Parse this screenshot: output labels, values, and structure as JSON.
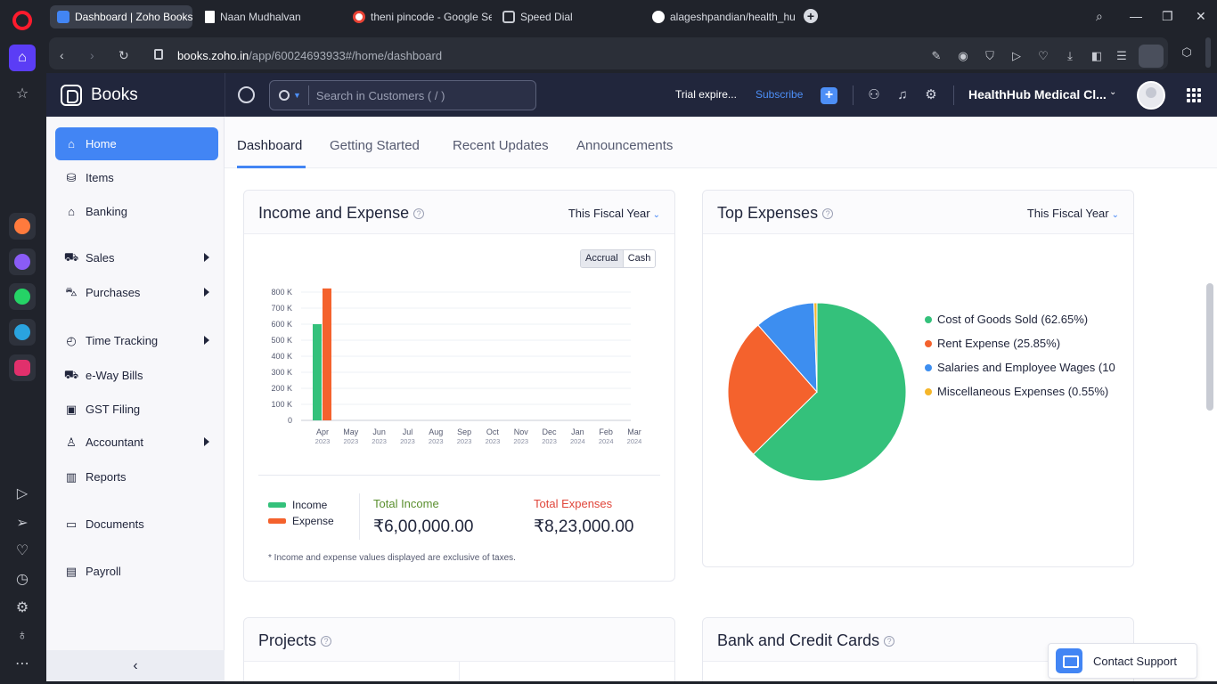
{
  "browser": {
    "tabs": [
      {
        "label": "Dashboard | Zoho Books",
        "color": "#4285f4"
      },
      {
        "label": "Naan Mudhalvan",
        "color": "#ffffff"
      },
      {
        "label": "theni pincode - Google Se",
        "color": "#ea4335"
      },
      {
        "label": "Speed Dial",
        "color": "#c8cbd2"
      },
      {
        "label": "alageshpandian/health_hu",
        "color": "#ffffff"
      }
    ],
    "url_host": "books.zoho.in",
    "url_path": "/app/60024693933#/home/dashboard",
    "rail_apps": [
      "aria-icon",
      "messenger-icon",
      "whatsapp-icon",
      "telegram-icon",
      "instagram-icon"
    ],
    "rail_tools": [
      "player-icon",
      "send-icon",
      "heart-icon",
      "history-icon",
      "settings-icon",
      "lightbulb-icon",
      "more-icon"
    ]
  },
  "header": {
    "brand": "Books",
    "search_placeholder": "Search in Customers ( / )",
    "trial": "Trial expire...",
    "subscribe": "Subscribe",
    "org_name": "HealthHub Medical Cl..."
  },
  "sidebar": {
    "items": [
      {
        "label": "Home",
        "icon": "home-icon",
        "active": true,
        "arrow": false
      },
      {
        "label": "Items",
        "icon": "items-icon",
        "active": false,
        "arrow": false
      },
      {
        "label": "Banking",
        "icon": "bank-icon",
        "active": false,
        "arrow": false
      },
      {
        "label": "Sales",
        "icon": "cart-icon",
        "active": false,
        "arrow": true
      },
      {
        "label": "Purchases",
        "icon": "bag-icon",
        "active": false,
        "arrow": true
      },
      {
        "label": "Time Tracking",
        "icon": "timer-icon",
        "active": false,
        "arrow": true
      },
      {
        "label": "e-Way Bills",
        "icon": "truck-icon",
        "active": false,
        "arrow": false
      },
      {
        "label": "GST Filing",
        "icon": "gst-icon",
        "active": false,
        "arrow": false
      },
      {
        "label": "Accountant",
        "icon": "accountant-icon",
        "active": false,
        "arrow": true
      },
      {
        "label": "Reports",
        "icon": "reports-icon",
        "active": false,
        "arrow": false
      },
      {
        "label": "Documents",
        "icon": "folder-icon",
        "active": false,
        "arrow": false
      },
      {
        "label": "Payroll",
        "icon": "payroll-icon",
        "active": false,
        "arrow": false
      }
    ]
  },
  "dashboard_tabs": [
    "Dashboard",
    "Getting Started",
    "Recent Updates",
    "Announcements"
  ],
  "income_expense": {
    "title": "Income and Expense",
    "period": "This Fiscal Year",
    "toggle": [
      "Accrual",
      "Cash"
    ],
    "legend_income": "Income",
    "legend_expense": "Expense",
    "total_income_label": "Total Income",
    "total_income_value": "₹6,00,000.00",
    "total_expense_label": "Total Expenses",
    "total_expense_value": "₹8,23,000.00",
    "footnote": "* Income and expense values displayed are exclusive of taxes."
  },
  "top_expenses": {
    "title": "Top Expenses",
    "period": "This Fiscal Year",
    "legend": [
      {
        "label": "Cost of Goods Sold (62.65%)",
        "color": "#34c17b"
      },
      {
        "label": "Rent Expense (25.85%)",
        "color": "#f4622d"
      },
      {
        "label": "Salaries and Employee Wages (10",
        "color": "#3d8ef0"
      },
      {
        "label": "Miscellaneous Expenses (0.55%)",
        "color": "#f5b62a"
      }
    ]
  },
  "projects": {
    "title": "Projects"
  },
  "bank_cards": {
    "title": "Bank and Credit Cards"
  },
  "contact_support": "Contact Support",
  "chart_data": [
    {
      "type": "bar",
      "categories": [
        "Apr 2023",
        "May 2023",
        "Jun 2023",
        "Jul 2023",
        "Aug 2023",
        "Sep 2023",
        "Oct 2023",
        "Nov 2023",
        "Dec 2023",
        "Jan 2024",
        "Feb 2024",
        "Mar 2024"
      ],
      "category_month": [
        "Apr",
        "May",
        "Jun",
        "Jul",
        "Aug",
        "Sep",
        "Oct",
        "Nov",
        "Dec",
        "Jan",
        "Feb",
        "Mar"
      ],
      "category_year": [
        "2023",
        "2023",
        "2023",
        "2023",
        "2023",
        "2023",
        "2023",
        "2023",
        "2023",
        "2024",
        "2024",
        "2024"
      ],
      "series": [
        {
          "name": "Income",
          "color": "#34c17b",
          "values": [
            600000,
            0,
            0,
            0,
            0,
            0,
            0,
            0,
            0,
            0,
            0,
            0
          ]
        },
        {
          "name": "Expense",
          "color": "#f4622d",
          "values": [
            823000,
            0,
            0,
            0,
            0,
            0,
            0,
            0,
            0,
            0,
            0,
            0
          ]
        }
      ],
      "y_ticks": [
        "0",
        "100 K",
        "200 K",
        "300 K",
        "400 K",
        "500 K",
        "600 K",
        "700 K",
        "800 K"
      ],
      "ylim": [
        0,
        800000
      ],
      "grid": true
    },
    {
      "type": "pie",
      "labels": [
        "Cost of Goods Sold",
        "Rent Expense",
        "Salaries and Employee Wages",
        "Miscellaneous Expenses"
      ],
      "values": [
        62.65,
        25.85,
        10.95,
        0.55
      ],
      "colors": [
        "#34c17b",
        "#f4622d",
        "#3d8ef0",
        "#f5b62a"
      ]
    }
  ]
}
